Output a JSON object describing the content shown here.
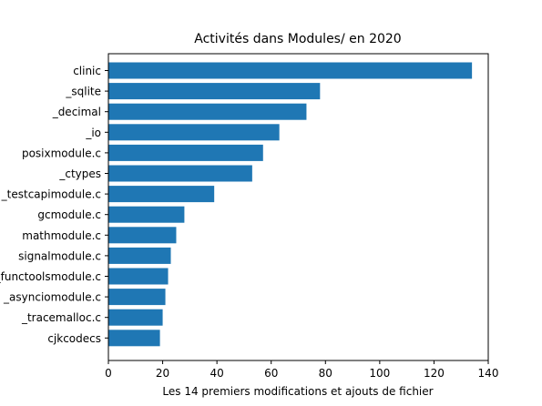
{
  "chart_data": {
    "type": "bar",
    "orientation": "horizontal",
    "title": "Activités dans Modules/ en 2020",
    "xlabel": "Les 14 premiers modifications et ajouts de fichier",
    "ylabel": "",
    "categories": [
      "clinic",
      "_sqlite",
      "_decimal",
      "_io",
      "posixmodule.c",
      "_ctypes",
      "_testcapimodule.c",
      "gcmodule.c",
      "mathmodule.c",
      "signalmodule.c",
      "_functoolsmodule.c",
      "_asynciomodule.c",
      "_tracemalloc.c",
      "cjkcodecs"
    ],
    "values": [
      134,
      78,
      73,
      63,
      57,
      53,
      39,
      28,
      25,
      23,
      22,
      21,
      20,
      19
    ],
    "xlim": [
      0,
      140
    ],
    "xticks": [
      0,
      20,
      40,
      60,
      80,
      100,
      120,
      140
    ],
    "grid": false,
    "color": "#1f77b4"
  }
}
